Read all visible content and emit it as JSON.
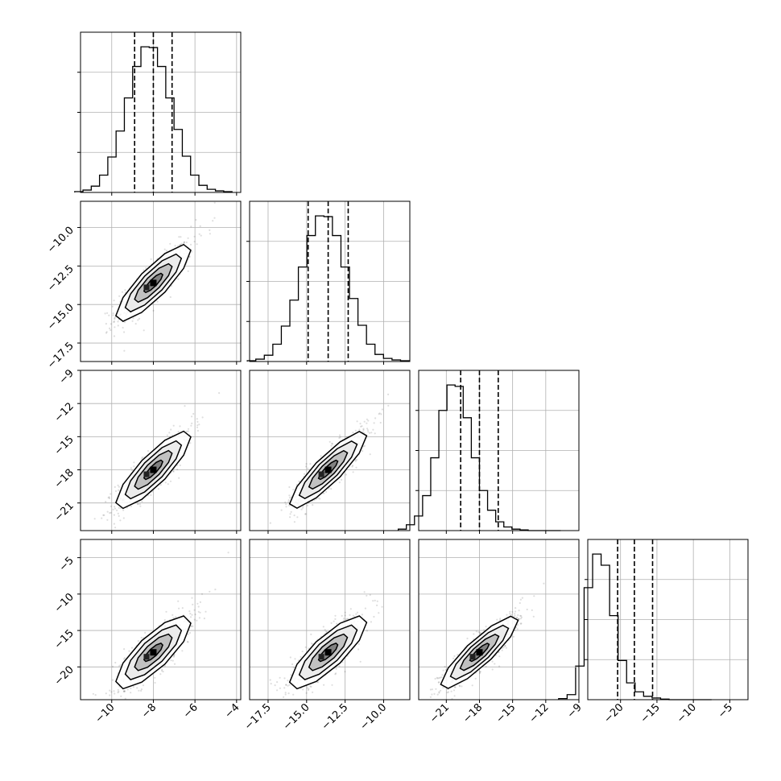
{
  "chart_data": {
    "type": "corner",
    "grid": true,
    "parameters": [
      {
        "range": [
          -11.5,
          -3.8
        ],
        "ticks": [
          -10,
          -8,
          -6,
          -4
        ],
        "tick_labels": [
          "−10",
          "−8",
          "−6",
          "−4"
        ],
        "mean": -8.0,
        "sigma": 0.9,
        "quantiles": [
          -8.9,
          -8.0,
          -7.1
        ]
      },
      {
        "range": [
          -18.7,
          -8.3
        ],
        "ticks": [
          -17.5,
          -15.0,
          -12.5,
          -10.0
        ],
        "tick_labels": [
          "−17.5",
          "−15.0",
          "−12.5",
          "−10.0"
        ],
        "mean": -13.6,
        "sigma": 1.25,
        "quantiles": [
          -14.9,
          -13.6,
          -12.3
        ]
      },
      {
        "range": [
          -23.5,
          -9.0
        ],
        "ticks": [
          -21,
          -18,
          -15,
          -12,
          -9
        ],
        "tick_labels": [
          "−21",
          "−18",
          "−15",
          "−12",
          "−9"
        ],
        "mean": -18.0,
        "sigma": 1.75,
        "quantiles": [
          -19.7,
          -18.0,
          -16.3
        ]
      },
      {
        "range": [
          -24.5,
          -2.5
        ],
        "ticks": [
          -20,
          -15,
          -10,
          -5
        ],
        "tick_labels": [
          "−20",
          "−15",
          "−10",
          "−5"
        ],
        "mean": -18.0,
        "sigma": 2.5,
        "quantiles": [
          -20.4,
          -18.1,
          -15.6
        ]
      }
    ],
    "y_axis_ticks": {
      "1": {
        "ticks": [
          -17.5,
          -15.0,
          -12.5,
          -10.0
        ],
        "tick_labels": [
          "−17.5",
          "−15.0",
          "−12.5",
          "−10.0"
        ]
      },
      "2": {
        "ticks": [
          -21,
          -18,
          -15,
          -12,
          -9
        ],
        "tick_labels": [
          "−21",
          "−18",
          "−15",
          "−12",
          "−9"
        ]
      },
      "3": {
        "ticks": [
          -20,
          -15,
          -10,
          -5
        ],
        "tick_labels": [
          "−20",
          "−15",
          "−10",
          "−5"
        ]
      }
    },
    "histogram_counts": [
      [
        1,
        3,
        8,
        22,
        45,
        78,
        120,
        160,
        185,
        184,
        160,
        120,
        80,
        46,
        22,
        9,
        4,
        2,
        1
      ],
      [
        1,
        3,
        8,
        22,
        45,
        78,
        120,
        160,
        185,
        184,
        160,
        120,
        80,
        46,
        22,
        9,
        4,
        2,
        1
      ],
      [
        2,
        8,
        20,
        48,
        100,
        165,
        200,
        198,
        155,
        100,
        55,
        28,
        12,
        5,
        2,
        1,
        0,
        0,
        0,
        0
      ],
      [
        2,
        9,
        60,
        200,
        260,
        240,
        150,
        70,
        30,
        14,
        6,
        3,
        1,
        0,
        0,
        0,
        0,
        0
      ]
    ],
    "correlations": [
      {
        "row": 1,
        "col": 0,
        "rho": 0.85
      },
      {
        "row": 2,
        "col": 0,
        "rho": 0.85
      },
      {
        "row": 2,
        "col": 1,
        "rho": 0.88
      },
      {
        "row": 3,
        "col": 0,
        "rho": 0.8
      },
      {
        "row": 3,
        "col": 1,
        "rho": 0.82
      },
      {
        "row": 3,
        "col": 2,
        "rho": 0.88
      }
    ],
    "contour_levels_sigma": [
      0.5,
      1.0,
      1.5,
      2.0
    ],
    "colors": {
      "line": "#000000",
      "points": "#000000",
      "grid": "#b0b0b0"
    }
  }
}
